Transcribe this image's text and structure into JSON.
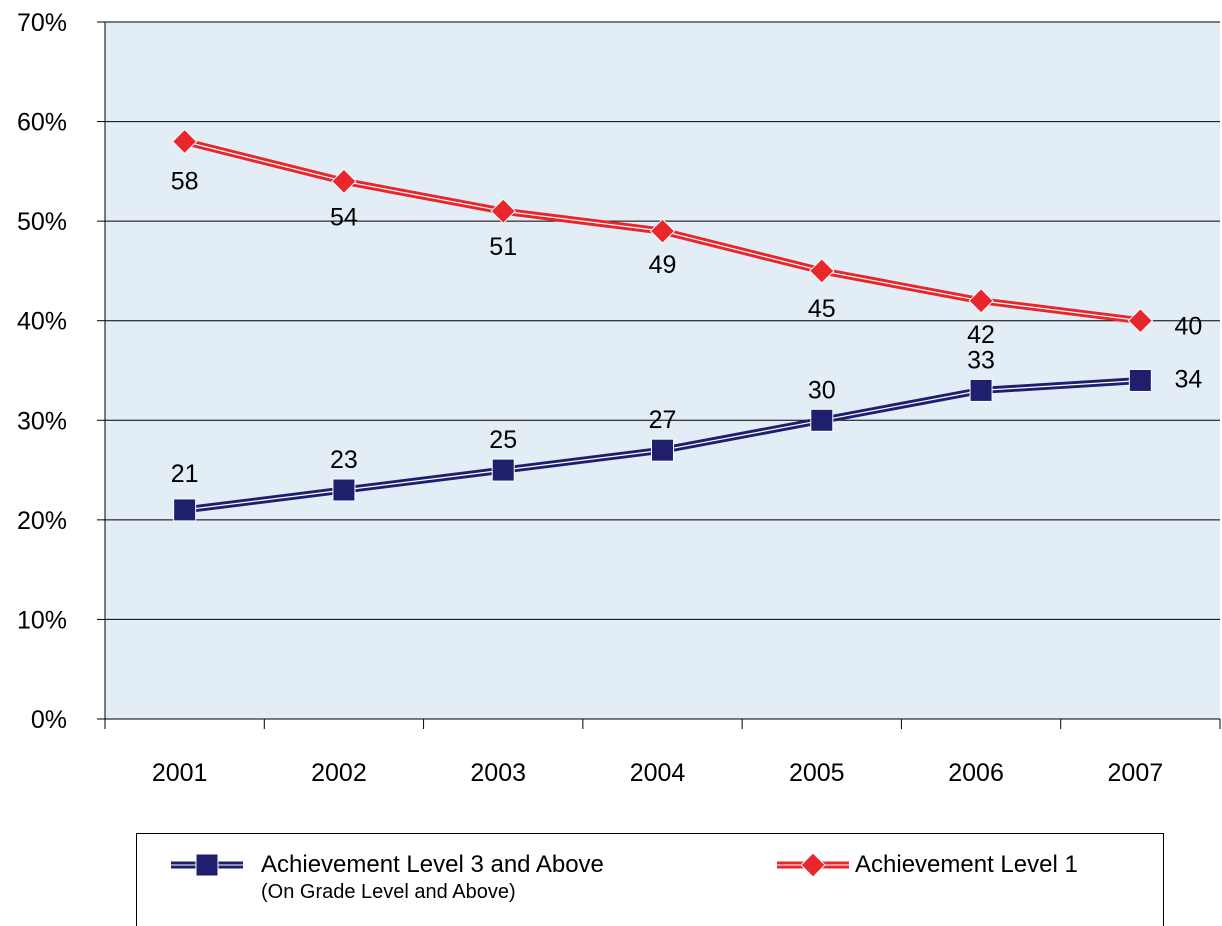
{
  "chart_data": {
    "type": "line",
    "categories": [
      "2001",
      "2002",
      "2003",
      "2004",
      "2005",
      "2006",
      "2007"
    ],
    "series": [
      {
        "name": "Achievement Level 3 and Above",
        "subtitle": "(On Grade Level and Above)",
        "values": [
          21,
          23,
          25,
          27,
          30,
          33,
          34
        ],
        "data_labels": [
          "21",
          "23",
          "25",
          "27",
          "30",
          "33",
          "34"
        ],
        "color": "#1f1f6e",
        "marker": "square"
      },
      {
        "name": "Achievement Level 1",
        "values": [
          58,
          54,
          51,
          49,
          45,
          42,
          40
        ],
        "data_labels": [
          "58",
          "54",
          "51",
          "49",
          "45",
          "42",
          "40"
        ],
        "color": "#e8262b",
        "marker": "diamond"
      }
    ],
    "ylim": [
      0,
      70
    ],
    "yticks": [
      "0%",
      "10%",
      "20%",
      "30%",
      "40%",
      "50%",
      "60%",
      "70%"
    ],
    "grid": true,
    "plot_background": "#e3edf5",
    "legend_position": "bottom"
  }
}
